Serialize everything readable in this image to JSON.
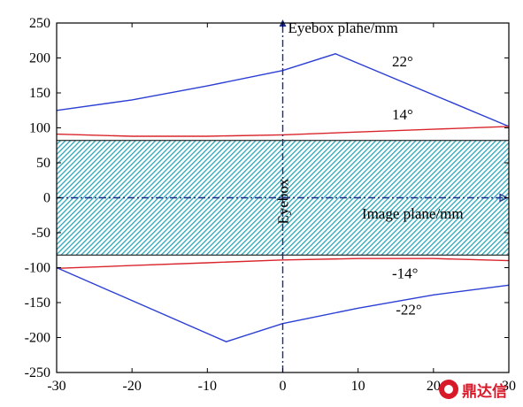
{
  "chart_data": {
    "type": "line",
    "title": "",
    "xlabel": "",
    "ylabel": "",
    "xlim": [
      -30,
      30
    ],
    "ylim": [
      -250,
      250
    ],
    "x_ticks": [
      "-30",
      "-20",
      "-10",
      "0",
      "10",
      "20",
      "30"
    ],
    "y_ticks": [
      "250",
      "200",
      "150",
      "100",
      "50",
      "0",
      "-50",
      "-100",
      "-150",
      "-200",
      "-250"
    ],
    "grid": false,
    "eyebox_band": {
      "y_range": [
        -82,
        82
      ],
      "fill": "#2aa6b8",
      "label": "Eyebox"
    },
    "axis_labels": {
      "vertical": "Eyebox plane/mm",
      "horizontal": "Image plane/mm"
    },
    "series": [
      {
        "name": "22°",
        "color": "#2b3fd4",
        "x": [
          -30,
          -20,
          -10,
          0,
          7,
          30
        ],
        "y": [
          125,
          140,
          160,
          182,
          206,
          102
        ]
      },
      {
        "name": "14°",
        "color": "#d9262c",
        "x": [
          -30,
          -20,
          -10,
          0,
          10,
          20,
          30
        ],
        "y": [
          91,
          88,
          88,
          90,
          94,
          98,
          102
        ]
      },
      {
        "name": "-14°",
        "color": "#d9262c",
        "x": [
          -30,
          -20,
          -10,
          0,
          10,
          20,
          30
        ],
        "y": [
          -101,
          -97,
          -93,
          -89,
          -87,
          -87,
          -90
        ]
      },
      {
        "name": "-22°",
        "color": "#2b3fd4",
        "x": [
          -30,
          -7.5,
          0,
          10,
          20,
          30
        ],
        "y": [
          -100,
          -206,
          -180,
          -158,
          -139,
          -125
        ]
      }
    ],
    "annotations": [
      {
        "text": "22°",
        "x": 14.5,
        "y": 188
      },
      {
        "text": "14°",
        "x": 14.5,
        "y": 112
      },
      {
        "text": "-14°",
        "x": 14.5,
        "y": -115
      },
      {
        "text": "-22°",
        "x": 15,
        "y": -167
      }
    ]
  },
  "watermark": {
    "text": "鼎达信"
  }
}
